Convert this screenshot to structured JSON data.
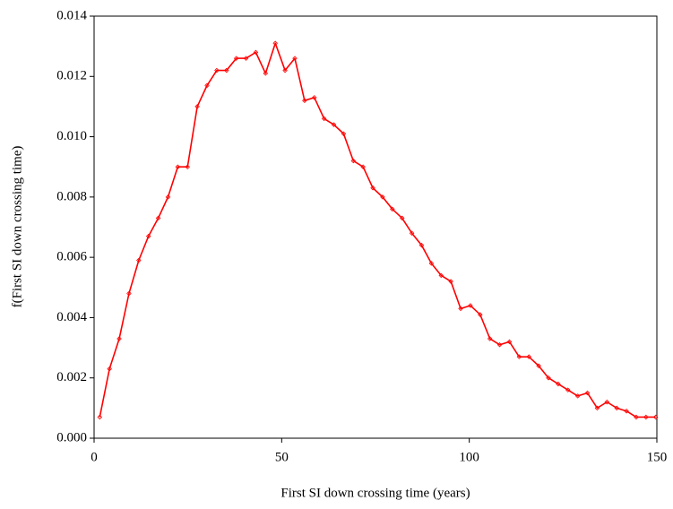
{
  "chart_data": {
    "type": "line",
    "xlabel": "First SI down crossing time  (years)",
    "ylabel": "f(First SI down crossing time)",
    "xlim": [
      0,
      150
    ],
    "xticks": [
      0,
      50,
      100,
      150
    ],
    "ylim": [
      0,
      0.014
    ],
    "yticks": [
      {
        "value": 0,
        "label": "0.000"
      },
      {
        "value": 0.002,
        "label": "0.002"
      },
      {
        "value": 0.004,
        "label": "0.004"
      },
      {
        "value": 0.006,
        "label": "0.006"
      },
      {
        "value": 0.008,
        "label": "0.008"
      },
      {
        "value": 0.01,
        "label": "0.010"
      },
      {
        "value": 0.012,
        "label": "0.012"
      },
      {
        "value": 0.014,
        "label": "0.014"
      }
    ],
    "x": [
      1.5,
      4.1,
      6.7,
      9.3,
      11.9,
      14.5,
      17.1,
      19.7,
      22.3,
      24.9,
      27.5,
      30.1,
      32.7,
      35.3,
      37.9,
      40.5,
      43.1,
      45.7,
      48.3,
      50.9,
      53.5,
      56.1,
      58.7,
      61.3,
      63.9,
      66.5,
      69.1,
      71.7,
      74.3,
      76.9,
      79.5,
      82.1,
      84.7,
      87.3,
      89.9,
      92.5,
      95.1,
      97.7,
      100.3,
      102.9,
      105.5,
      108.1,
      110.7,
      113.3,
      115.9,
      118.5,
      121.1,
      123.7,
      126.3,
      128.9,
      131.5,
      134.1,
      136.7,
      139.3,
      141.9,
      144.5,
      147.1,
      149.7
    ],
    "series": [
      {
        "color": "#ff0000",
        "values": [
          0.0007,
          0.0023,
          0.0033,
          0.0048,
          0.0059,
          0.0067,
          0.0073,
          0.008,
          0.009,
          0.009,
          0.011,
          0.0117,
          0.0122,
          0.0122,
          0.0126,
          0.0126,
          0.0128,
          0.0121,
          0.0131,
          0.0122,
          0.0126,
          0.0112,
          0.0113,
          0.0106,
          0.0104,
          0.0101,
          0.0092,
          0.009,
          0.0083,
          0.008,
          0.0076,
          0.0073,
          0.0068,
          0.0064,
          0.0058,
          0.0054,
          0.0052,
          0.0043,
          0.0044,
          0.0041,
          0.0033,
          0.0031,
          0.0032,
          0.0027,
          0.0027,
          0.0024,
          0.002,
          0.0018,
          0.0016,
          0.0014,
          0.0015,
          0.001,
          0.0012,
          0.001,
          0.0009,
          0.0007,
          0.0007,
          0.0007
        ]
      }
    ]
  }
}
